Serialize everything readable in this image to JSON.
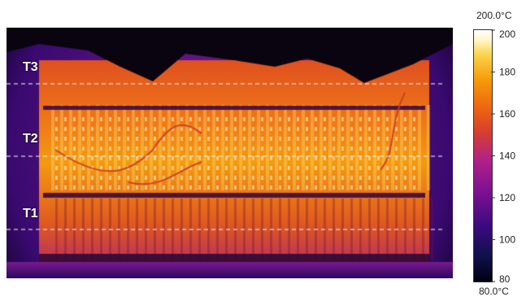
{
  "lines": [
    {
      "label": "T3"
    },
    {
      "label": "T2"
    },
    {
      "label": "T1"
    }
  ],
  "scale": {
    "max_label": "200.0°C",
    "min_label": "80.0°C",
    "ticks": [
      "200",
      "180",
      "160",
      "140",
      "120",
      "100",
      "80"
    ],
    "tick_values": [
      200,
      180,
      160,
      140,
      120,
      100,
      80
    ]
  },
  "colors": {
    "background": "#000000",
    "hot": "#ffffcc",
    "warm": "#ff9900",
    "mid": "#e0402a",
    "cool": "#8a1a90",
    "cold": "#1a0a60",
    "line": "#ffffff"
  }
}
